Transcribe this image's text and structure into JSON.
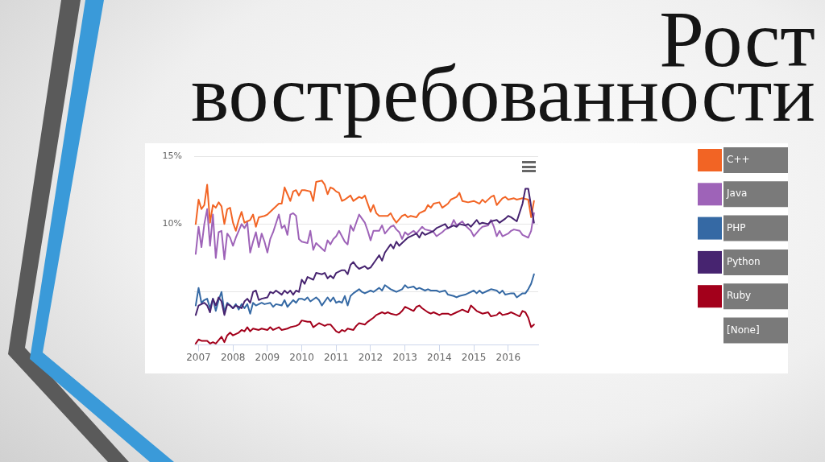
{
  "chart_data": {
    "type": "line",
    "title": "Рост востребованности",
    "xlim": [
      "2006-11-15",
      "2016-11-15"
    ],
    "xticks": [
      "2007",
      "2008",
      "2009",
      "2010",
      "2011",
      "2012",
      "2013",
      "2014",
      "2015",
      "2016"
    ],
    "ylim": [
      1.1,
      15
    ],
    "yticks": [
      {
        "value": 15,
        "label": "15%"
      },
      {
        "value": 10,
        "label": "10%"
      },
      {
        "value": 5,
        "label": null
      }
    ],
    "grid": "y",
    "legend": "right",
    "marker": "none",
    "annotations": [
      "[None]"
    ],
    "series": [
      {
        "name": "C++",
        "color": "#f26424",
        "x": [
          "2006-12",
          "2007-01",
          "2007-02",
          "2007-03",
          "2007-04",
          "2007-05",
          "2007-06",
          "2007-07",
          "2007-08",
          "2007-09",
          "2007-10",
          "2007-11",
          "2007-12",
          "2008-01",
          "2008-02",
          "2008-03",
          "2008-04",
          "2008-05",
          "2008-06",
          "2008-07",
          "2008-08",
          "2008-09",
          "2008-10",
          "2008-12",
          "2009-01",
          "2009-03",
          "2009-05",
          "2009-06",
          "2009-07",
          "2009-08",
          "2009-09",
          "2009-10",
          "2009-11",
          "2009-12",
          "2010-01",
          "2010-02",
          "2010-04",
          "2010-05",
          "2010-06",
          "2010-08",
          "2010-09",
          "2010-10",
          "2010-11",
          "2010-12",
          "2011-01",
          "2011-02",
          "2011-03",
          "2011-04",
          "2011-06",
          "2011-07",
          "2011-09",
          "2011-10",
          "2011-11",
          "2011-12",
          "2012-01",
          "2012-02",
          "2012-03",
          "2012-04",
          "2012-06",
          "2012-07",
          "2012-08",
          "2012-09",
          "2012-10",
          "2012-12",
          "2013-01",
          "2013-02",
          "2013-03",
          "2013-05",
          "2013-06",
          "2013-08",
          "2013-09",
          "2013-10",
          "2013-11",
          "2014-01",
          "2014-02",
          "2014-04",
          "2014-05",
          "2014-07",
          "2014-08",
          "2014-09",
          "2014-11",
          "2015-01",
          "2015-03",
          "2015-04",
          "2015-05",
          "2015-07",
          "2015-08",
          "2015-09",
          "2015-11",
          "2015-12",
          "2016-01",
          "2016-03",
          "2016-04",
          "2016-06",
          "2016-08",
          "2016-09",
          "2016-10"
        ],
        "values": [
          10.0,
          11.8,
          11.1,
          11.4,
          12.9,
          10.1,
          11.4,
          11.2,
          11.6,
          11.3,
          10.0,
          11.1,
          11.2,
          10.1,
          9.5,
          10.3,
          10.9,
          10.1,
          10.2,
          10.3,
          10.7,
          9.8,
          10.5,
          10.6,
          10.7,
          11.1,
          11.5,
          11.5,
          12.7,
          12.2,
          11.7,
          12.4,
          12.5,
          12.1,
          12.5,
          12.5,
          12.4,
          11.7,
          13.1,
          13.2,
          12.9,
          12.2,
          12.7,
          12.6,
          12.4,
          12.3,
          11.7,
          11.8,
          12.1,
          11.7,
          12.0,
          11.9,
          12.1,
          11.5,
          10.9,
          11.4,
          10.8,
          10.6,
          10.6,
          10.6,
          10.8,
          10.4,
          10.1,
          10.6,
          10.7,
          10.5,
          10.6,
          10.5,
          10.8,
          11.0,
          11.4,
          11.2,
          11.5,
          11.6,
          11.2,
          11.5,
          11.8,
          12.0,
          12.3,
          11.7,
          11.6,
          11.7,
          11.5,
          11.8,
          11.6,
          12.0,
          12.1,
          11.4,
          11.9,
          12.0,
          11.8,
          11.9,
          11.8,
          11.9,
          11.8,
          10.5,
          11.7
        ]
      },
      {
        "name": "Java",
        "color": "#9e63b8",
        "x": [
          "2006-12",
          "2007-01",
          "2007-02",
          "2007-03",
          "2007-04",
          "2007-05",
          "2007-06",
          "2007-07",
          "2007-08",
          "2007-09",
          "2007-10",
          "2007-11",
          "2007-12",
          "2008-01",
          "2008-02",
          "2008-03",
          "2008-04",
          "2008-05",
          "2008-06",
          "2008-07",
          "2008-08",
          "2008-09",
          "2008-10",
          "2008-11",
          "2008-12",
          "2009-01",
          "2009-02",
          "2009-03",
          "2009-05",
          "2009-06",
          "2009-07",
          "2009-08",
          "2009-09",
          "2009-10",
          "2009-11",
          "2009-12",
          "2010-01",
          "2010-03",
          "2010-04",
          "2010-05",
          "2010-06",
          "2010-08",
          "2010-09",
          "2010-10",
          "2010-11",
          "2010-12",
          "2011-01",
          "2011-02",
          "2011-03",
          "2011-04",
          "2011-05",
          "2011-06",
          "2011-07",
          "2011-09",
          "2011-10",
          "2011-11",
          "2011-12",
          "2012-01",
          "2012-02",
          "2012-04",
          "2012-05",
          "2012-06",
          "2012-08",
          "2012-09",
          "2012-10",
          "2012-11",
          "2012-12",
          "2013-01",
          "2013-02",
          "2013-04",
          "2013-05",
          "2013-07",
          "2013-08",
          "2013-10",
          "2013-11",
          "2013-12",
          "2014-02",
          "2014-03",
          "2014-05",
          "2014-06",
          "2014-07",
          "2014-09",
          "2014-10",
          "2014-12",
          "2015-01",
          "2015-03",
          "2015-04",
          "2015-06",
          "2015-07",
          "2015-08",
          "2015-09",
          "2015-10",
          "2015-11",
          "2016-01",
          "2016-02",
          "2016-03",
          "2016-05",
          "2016-06",
          "2016-08",
          "2016-09",
          "2016-10"
        ],
        "values": [
          7.8,
          9.8,
          8.3,
          10.0,
          11.1,
          8.4,
          10.7,
          7.5,
          9.4,
          9.5,
          7.4,
          9.3,
          9.0,
          8.4,
          9.0,
          9.5,
          10.0,
          9.7,
          10.1,
          7.9,
          8.7,
          9.4,
          8.3,
          9.3,
          8.7,
          7.9,
          8.9,
          9.4,
          10.7,
          9.7,
          9.9,
          9.2,
          10.7,
          10.8,
          10.6,
          8.9,
          8.7,
          8.6,
          9.5,
          8.1,
          8.6,
          8.2,
          8.0,
          8.8,
          8.5,
          8.9,
          9.1,
          9.5,
          9.1,
          8.7,
          8.5,
          9.9,
          9.5,
          10.7,
          10.4,
          10.1,
          9.5,
          8.8,
          9.5,
          9.5,
          9.9,
          9.3,
          9.8,
          9.9,
          9.6,
          9.4,
          8.9,
          9.4,
          9.2,
          9.5,
          9.3,
          9.8,
          9.6,
          9.5,
          9.4,
          9.1,
          9.4,
          9.6,
          9.8,
          10.3,
          9.9,
          10.2,
          9.9,
          9.5,
          9.1,
          9.6,
          9.8,
          9.9,
          10.3,
          9.8,
          9.1,
          9.5,
          9.1,
          9.3,
          9.5,
          9.6,
          9.5,
          9.2,
          9.0,
          9.5,
          10.8
        ]
      },
      {
        "name": "PHP",
        "color": "#3569a4",
        "x": [
          "2006-12",
          "2007-01",
          "2007-02",
          "2007-03",
          "2007-04",
          "2007-05",
          "2007-06",
          "2007-07",
          "2007-08",
          "2007-09",
          "2007-10",
          "2007-11",
          "2007-12",
          "2008-01",
          "2008-02",
          "2008-03",
          "2008-04",
          "2008-05",
          "2008-06",
          "2008-07",
          "2008-08",
          "2008-09",
          "2008-11",
          "2008-12",
          "2009-02",
          "2009-03",
          "2009-04",
          "2009-06",
          "2009-07",
          "2009-08",
          "2009-10",
          "2009-11",
          "2009-12",
          "2010-01",
          "2010-02",
          "2010-03",
          "2010-04",
          "2010-06",
          "2010-07",
          "2010-08",
          "2010-10",
          "2010-11",
          "2010-12",
          "2011-01",
          "2011-02",
          "2011-03",
          "2011-04",
          "2011-05",
          "2011-06",
          "2011-07",
          "2011-09",
          "2011-10",
          "2011-11",
          "2012-01",
          "2012-02",
          "2012-04",
          "2012-05",
          "2012-06",
          "2012-08",
          "2012-09",
          "2012-10",
          "2012-12",
          "2013-01",
          "2013-02",
          "2013-04",
          "2013-05",
          "2013-06",
          "2013-08",
          "2013-09",
          "2013-10",
          "2013-12",
          "2014-01",
          "2014-03",
          "2014-04",
          "2014-06",
          "2014-07",
          "2014-08",
          "2014-10",
          "2014-11",
          "2015-01",
          "2015-02",
          "2015-03",
          "2015-04",
          "2015-06",
          "2015-07",
          "2015-09",
          "2015-10",
          "2015-11",
          "2015-12",
          "2016-02",
          "2016-03",
          "2016-04",
          "2016-06",
          "2016-07",
          "2016-08",
          "2016-09",
          "2016-10"
        ],
        "values": [
          4.0,
          5.3,
          4.2,
          4.4,
          4.5,
          3.8,
          4.5,
          3.6,
          4.4,
          5.0,
          3.5,
          4.2,
          4.0,
          3.8,
          4.1,
          3.7,
          4.1,
          3.8,
          4.1,
          3.4,
          4.2,
          4.0,
          4.2,
          4.1,
          4.2,
          3.9,
          4.1,
          4.0,
          4.4,
          3.9,
          4.4,
          4.2,
          4.5,
          4.5,
          4.4,
          4.6,
          4.3,
          4.6,
          4.4,
          4.0,
          4.6,
          4.3,
          4.6,
          4.2,
          4.3,
          4.2,
          4.7,
          4.0,
          4.7,
          4.9,
          5.2,
          5.0,
          4.9,
          5.1,
          5.0,
          5.3,
          5.1,
          5.5,
          5.2,
          5.1,
          5.0,
          5.2,
          5.5,
          5.3,
          5.4,
          5.2,
          5.3,
          5.1,
          5.2,
          5.1,
          5.1,
          5.0,
          5.1,
          4.8,
          4.7,
          4.6,
          4.7,
          4.8,
          4.9,
          5.1,
          4.9,
          5.1,
          4.9,
          5.1,
          5.2,
          5.1,
          4.9,
          5.1,
          4.8,
          4.9,
          4.9,
          4.6,
          4.9,
          4.9,
          5.2,
          5.6,
          6.3
        ]
      },
      {
        "name": "Python",
        "color": "#472470",
        "x": [
          "2006-12",
          "2007-01",
          "2007-02",
          "2007-03",
          "2007-04",
          "2007-05",
          "2007-06",
          "2007-07",
          "2007-08",
          "2007-09",
          "2007-10",
          "2007-11",
          "2007-12",
          "2008-01",
          "2008-02",
          "2008-03",
          "2008-04",
          "2008-05",
          "2008-06",
          "2008-07",
          "2008-08",
          "2008-09",
          "2008-10",
          "2008-11",
          "2009-01",
          "2009-02",
          "2009-03",
          "2009-04",
          "2009-06",
          "2009-07",
          "2009-08",
          "2009-09",
          "2009-10",
          "2009-11",
          "2009-12",
          "2010-01",
          "2010-02",
          "2010-03",
          "2010-05",
          "2010-06",
          "2010-08",
          "2010-09",
          "2010-10",
          "2010-11",
          "2010-12",
          "2011-01",
          "2011-03",
          "2011-04",
          "2011-05",
          "2011-06",
          "2011-07",
          "2011-08",
          "2011-09",
          "2011-11",
          "2011-12",
          "2012-01",
          "2012-03",
          "2012-04",
          "2012-05",
          "2012-06",
          "2012-08",
          "2012-09",
          "2012-10",
          "2012-11",
          "2013-01",
          "2013-02",
          "2013-03",
          "2013-05",
          "2013-06",
          "2013-07",
          "2013-08",
          "2013-10",
          "2013-11",
          "2013-12",
          "2014-02",
          "2014-03",
          "2014-04",
          "2014-06",
          "2014-07",
          "2014-08",
          "2014-10",
          "2014-11",
          "2014-12",
          "2015-02",
          "2015-03",
          "2015-04",
          "2015-06",
          "2015-07",
          "2015-09",
          "2015-10",
          "2015-12",
          "2016-01",
          "2016-02",
          "2016-04",
          "2016-06",
          "2016-07",
          "2016-08",
          "2016-09",
          "2016-10"
        ],
        "values": [
          3.3,
          4.0,
          4.1,
          4.2,
          4.0,
          3.5,
          4.5,
          4.0,
          4.6,
          4.3,
          3.3,
          4.1,
          4.0,
          3.8,
          4.0,
          3.9,
          3.8,
          4.3,
          4.5,
          4.2,
          5.0,
          5.1,
          4.4,
          4.5,
          4.6,
          5.0,
          4.9,
          5.1,
          4.8,
          5.1,
          4.9,
          5.1,
          4.8,
          5.1,
          5.0,
          5.9,
          5.6,
          6.1,
          5.9,
          6.4,
          6.3,
          6.4,
          6.0,
          6.2,
          6.0,
          6.4,
          6.6,
          6.6,
          6.3,
          7.0,
          7.2,
          6.9,
          6.7,
          6.9,
          6.7,
          6.8,
          7.4,
          7.7,
          7.3,
          7.9,
          8.5,
          8.2,
          8.7,
          8.4,
          8.8,
          9.0,
          9.1,
          9.3,
          9.0,
          9.4,
          9.2,
          9.4,
          9.5,
          9.7,
          9.9,
          10.0,
          9.7,
          9.9,
          9.8,
          10.0,
          9.9,
          10.0,
          9.8,
          10.3,
          10.0,
          10.1,
          10.0,
          10.2,
          10.3,
          10.1,
          10.4,
          10.6,
          10.5,
          10.2,
          11.5,
          12.6,
          12.6,
          11.3,
          10.1
        ]
      },
      {
        "name": "Ruby",
        "color": "#a3001b",
        "x": [
          "2006-12",
          "2007-01",
          "2007-02",
          "2007-04",
          "2007-05",
          "2007-06",
          "2007-07",
          "2007-09",
          "2007-10",
          "2007-11",
          "2007-12",
          "2008-01",
          "2008-03",
          "2008-04",
          "2008-05",
          "2008-06",
          "2008-07",
          "2008-08",
          "2008-10",
          "2008-11",
          "2009-01",
          "2009-02",
          "2009-03",
          "2009-05",
          "2009-06",
          "2009-08",
          "2009-09",
          "2009-11",
          "2009-12",
          "2010-01",
          "2010-03",
          "2010-04",
          "2010-05",
          "2010-07",
          "2010-08",
          "2010-09",
          "2010-10",
          "2010-11",
          "2011-01",
          "2011-02",
          "2011-03",
          "2011-04",
          "2011-05",
          "2011-07",
          "2011-08",
          "2011-09",
          "2011-11",
          "2011-12",
          "2012-02",
          "2012-03",
          "2012-05",
          "2012-06",
          "2012-07",
          "2012-08",
          "2012-10",
          "2012-11",
          "2012-12",
          "2013-01",
          "2013-02",
          "2013-04",
          "2013-05",
          "2013-06",
          "2013-07",
          "2013-09",
          "2013-10",
          "2013-11",
          "2014-01",
          "2014-02",
          "2014-04",
          "2014-05",
          "2014-07",
          "2014-08",
          "2014-09",
          "2014-11",
          "2014-12",
          "2015-02",
          "2015-03",
          "2015-04",
          "2015-06",
          "2015-07",
          "2015-09",
          "2015-10",
          "2015-11",
          "2016-01",
          "2016-02",
          "2016-03",
          "2016-05",
          "2016-06",
          "2016-07",
          "2016-08",
          "2016-09",
          "2016-10"
        ],
        "values": [
          1.2,
          1.5,
          1.4,
          1.4,
          1.2,
          1.3,
          1.2,
          1.7,
          1.3,
          1.8,
          2.0,
          1.8,
          2.0,
          2.2,
          2.1,
          2.4,
          2.1,
          2.3,
          2.2,
          2.3,
          2.2,
          2.4,
          2.2,
          2.4,
          2.2,
          2.3,
          2.4,
          2.5,
          2.6,
          2.9,
          2.8,
          2.8,
          2.4,
          2.7,
          2.6,
          2.5,
          2.6,
          2.6,
          2.1,
          2.0,
          2.2,
          2.1,
          2.3,
          2.2,
          2.5,
          2.7,
          2.6,
          2.8,
          3.1,
          3.3,
          3.5,
          3.4,
          3.5,
          3.4,
          3.3,
          3.4,
          3.6,
          3.9,
          3.8,
          3.6,
          3.9,
          4.0,
          3.8,
          3.5,
          3.4,
          3.5,
          3.3,
          3.4,
          3.4,
          3.3,
          3.5,
          3.6,
          3.7,
          3.5,
          4.0,
          3.6,
          3.5,
          3.4,
          3.5,
          3.2,
          3.3,
          3.5,
          3.3,
          3.4,
          3.5,
          3.4,
          3.2,
          3.6,
          3.5,
          3.1,
          2.4,
          2.6
        ]
      }
    ]
  }
}
